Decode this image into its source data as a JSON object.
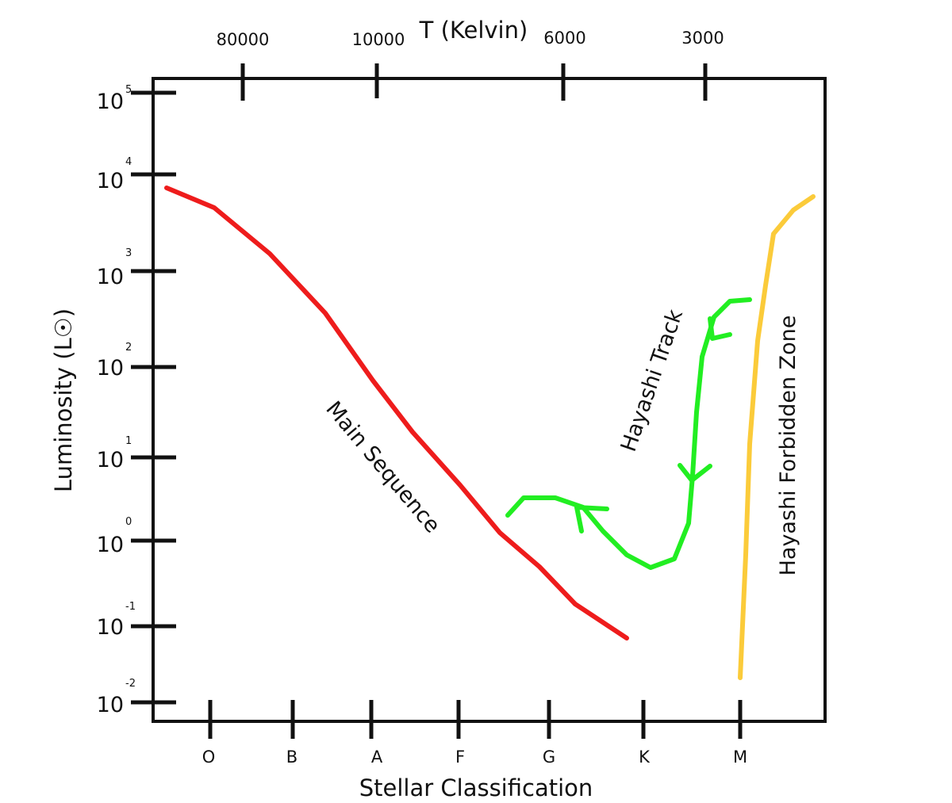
{
  "top_axis": {
    "title": "T (Kelvin)",
    "ticks": [
      "80000",
      "10000",
      "6000",
      "3000"
    ]
  },
  "left_axis": {
    "title": "Luminosity (L☉)",
    "ticks": [
      {
        "base": "10",
        "exponent": "5"
      },
      {
        "base": "10",
        "exponent": "4"
      },
      {
        "base": "10",
        "exponent": "3"
      },
      {
        "base": "10",
        "exponent": "2"
      },
      {
        "base": "10",
        "exponent": "1"
      },
      {
        "base": "10",
        "exponent": "0"
      },
      {
        "base": "10",
        "exponent": "-1"
      },
      {
        "base": "10",
        "exponent": "-2"
      }
    ]
  },
  "bottom_axis": {
    "title": "Stellar Classification",
    "ticks": [
      "O",
      "B",
      "A",
      "F",
      "G",
      "K",
      "M"
    ]
  },
  "labels": {
    "main_sequence": "Main Sequence",
    "hayashi_track": "Hayashi Track",
    "forbidden_zone": "Hayashi Forbidden Zone"
  }
}
